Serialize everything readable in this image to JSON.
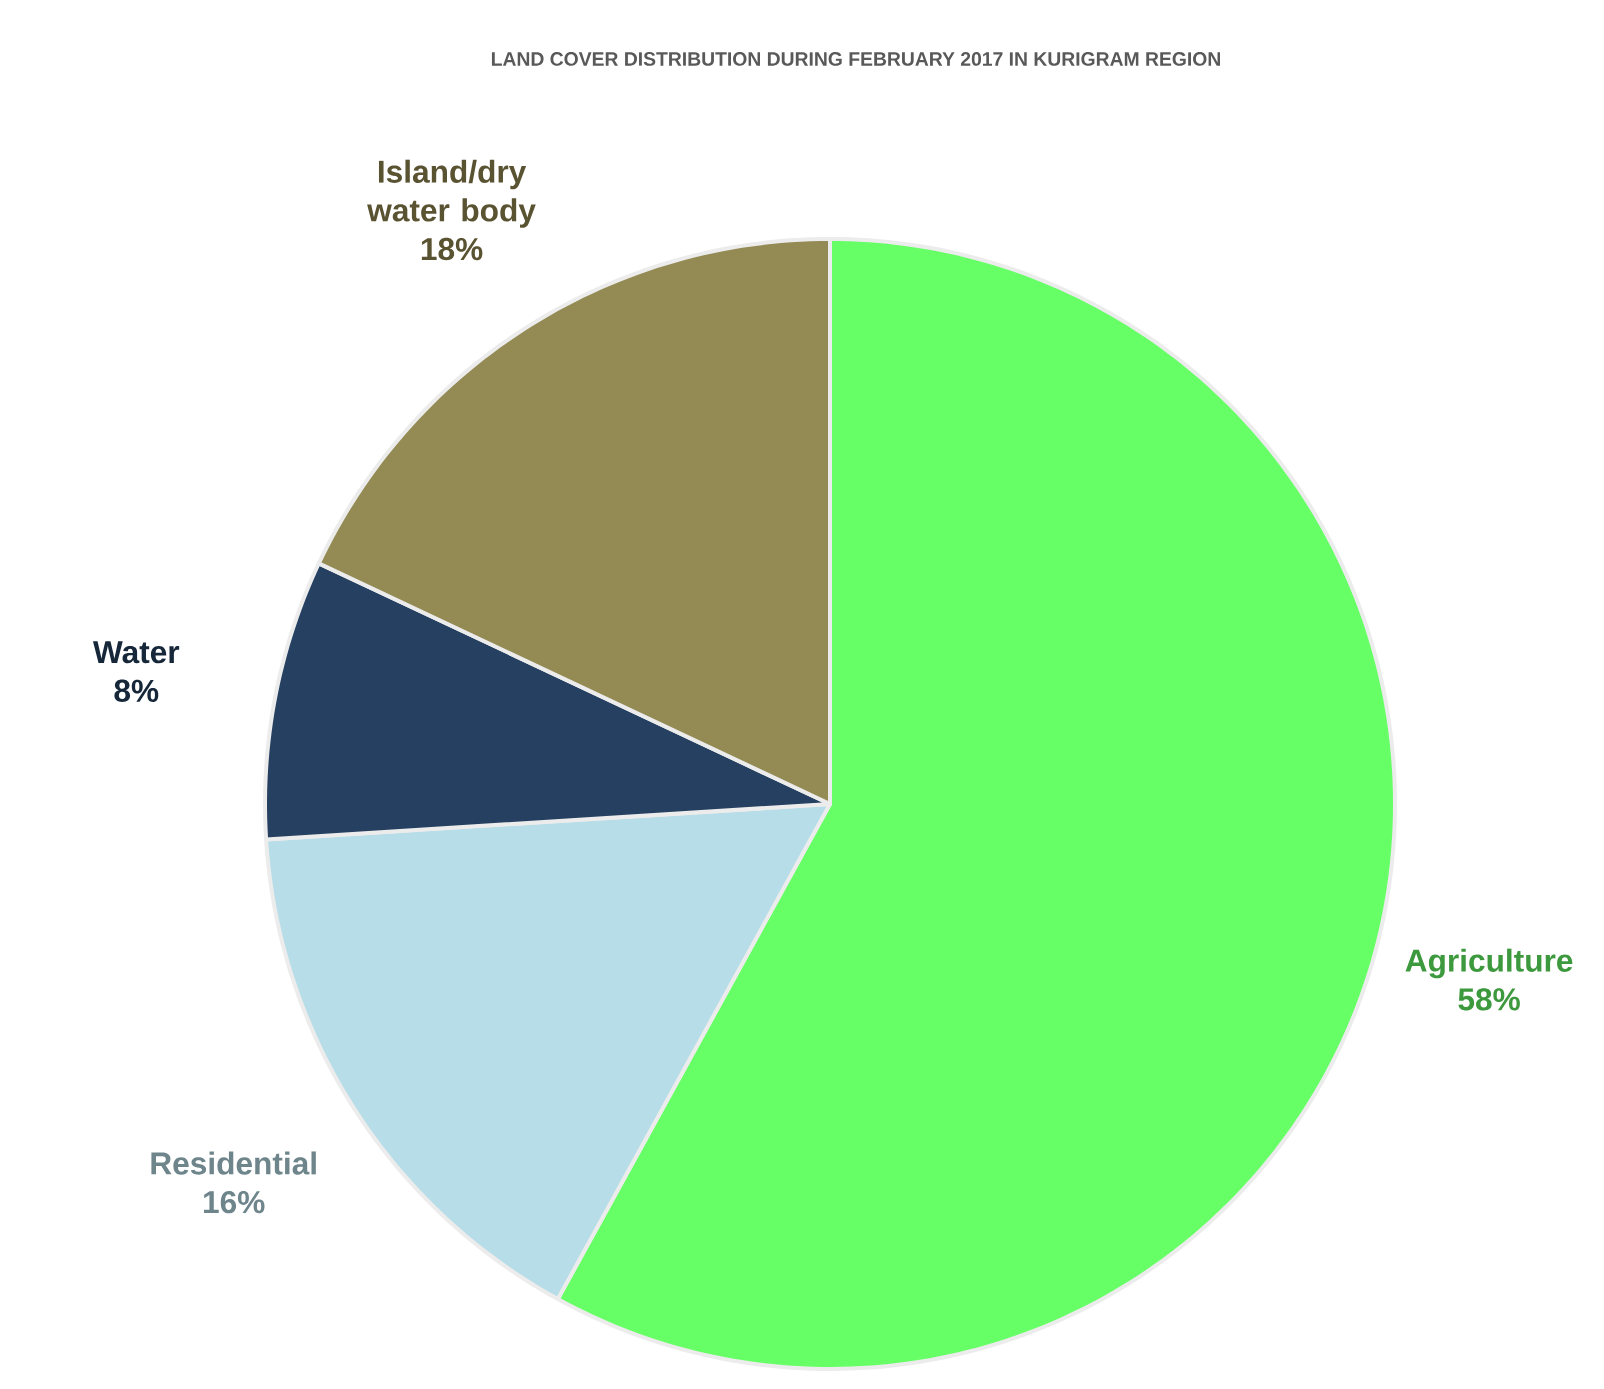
{
  "chart_data": {
    "type": "pie",
    "title": "LAND COVER DISTRIBUTION DURING FEBRUARY 2017 IN KURIGRAM  REGION",
    "categories": [
      "Agriculture",
      "Residential",
      "Water",
      "Island/dry water body"
    ],
    "values": [
      58,
      16,
      8,
      18
    ],
    "value_labels": [
      "58%",
      "16%",
      "8%",
      "18%"
    ],
    "colors": [
      "#66ff66",
      "#b7dde8",
      "#254061",
      "#948a54"
    ]
  }
}
